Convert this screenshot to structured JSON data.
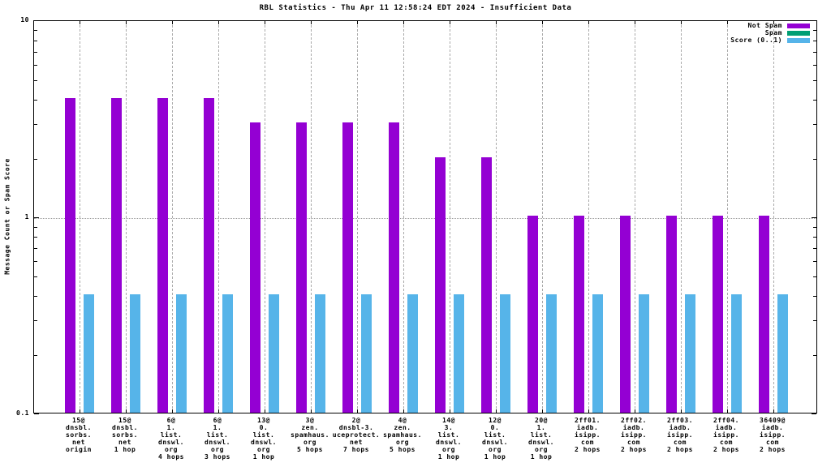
{
  "title": "RBL Statistics - Thu Apr 11 12:58:24 EDT 2024 - Insufficient Data",
  "ylabel": "Message Count or Spam Score",
  "colors": {
    "not_spam": "#9400D3",
    "spam": "#009E73",
    "score": "#56B4E9",
    "axis": "#000000",
    "grid": "#aaaaaa"
  },
  "chart_data": {
    "type": "bar",
    "title": "RBL Statistics - Thu Apr 11 12:58:24 EDT 2024 - Insufficient Data",
    "xlabel": "",
    "ylabel": "Message Count or Spam Score",
    "yscale": "log",
    "ylim": [
      0.1,
      10
    ],
    "grid": "on",
    "legend_position": "top-right",
    "yticks": [
      {
        "value": 0.1,
        "label": "0.1"
      },
      {
        "value": 1,
        "label": "1"
      },
      {
        "value": 10,
        "label": "10"
      }
    ],
    "minor_yticks": [
      0.2,
      0.3,
      0.4,
      0.5,
      0.6,
      0.7,
      0.8,
      0.9,
      2,
      3,
      4,
      5,
      6,
      7,
      8,
      9
    ],
    "categories": [
      [
        "15@",
        "dnsbl.",
        "sorbs.",
        "net",
        "origin"
      ],
      [
        "15@",
        "dnsbl.",
        "sorbs.",
        "net",
        "1 hop"
      ],
      [
        "6@",
        "1.",
        "list.",
        "dnswl.",
        "org",
        "4 hops"
      ],
      [
        "6@",
        "1.",
        "list.",
        "dnswl.",
        "org",
        "3 hops"
      ],
      [
        "13@",
        "0.",
        "list.",
        "dnswl.",
        "org",
        "1 hop"
      ],
      [
        "3@",
        "zen.",
        "spamhaus.",
        "org",
        "5 hops"
      ],
      [
        "2@",
        "dnsbl-3.",
        "uceprotect.",
        "net",
        "7 hops"
      ],
      [
        "4@",
        "zen.",
        "spamhaus.",
        "org",
        "5 hops"
      ],
      [
        "14@",
        "3.",
        "list.",
        "dnswl.",
        "org",
        "1 hop"
      ],
      [
        "12@",
        "0.",
        "list.",
        "dnswl.",
        "org",
        "1 hop"
      ],
      [
        "20@",
        "1.",
        "list.",
        "dnswl.",
        "org",
        "1 hop"
      ],
      [
        "2ff01.",
        "iadb.",
        "isipp.",
        "com",
        "2 hops"
      ],
      [
        "2ff02.",
        "iadb.",
        "isipp.",
        "com",
        "2 hops"
      ],
      [
        "2ff03.",
        "iadb.",
        "isipp.",
        "com",
        "2 hops"
      ],
      [
        "2ff04.",
        "iadb.",
        "isipp.",
        "com",
        "2 hops"
      ],
      [
        "36409@",
        "iadb.",
        "isipp.",
        "com",
        "2 hops"
      ]
    ],
    "series": [
      {
        "name": "Not Spam",
        "color": "#9400D3",
        "values": [
          4,
          4,
          4,
          4,
          3,
          3,
          3,
          3,
          2,
          2,
          1,
          1,
          1,
          1,
          1,
          1
        ]
      },
      {
        "name": "Spam",
        "color": "#009E73",
        "values": [
          0,
          0,
          0,
          0,
          0,
          0,
          0,
          0,
          0,
          0,
          0,
          0,
          0,
          0,
          0,
          0
        ]
      },
      {
        "name": "Score (0..1)",
        "color": "#56B4E9",
        "values": [
          0.4,
          0.4,
          0.4,
          0.4,
          0.4,
          0.4,
          0.4,
          0.4,
          0.4,
          0.4,
          0.4,
          0.4,
          0.4,
          0.4,
          0.4,
          0.4
        ]
      }
    ]
  }
}
